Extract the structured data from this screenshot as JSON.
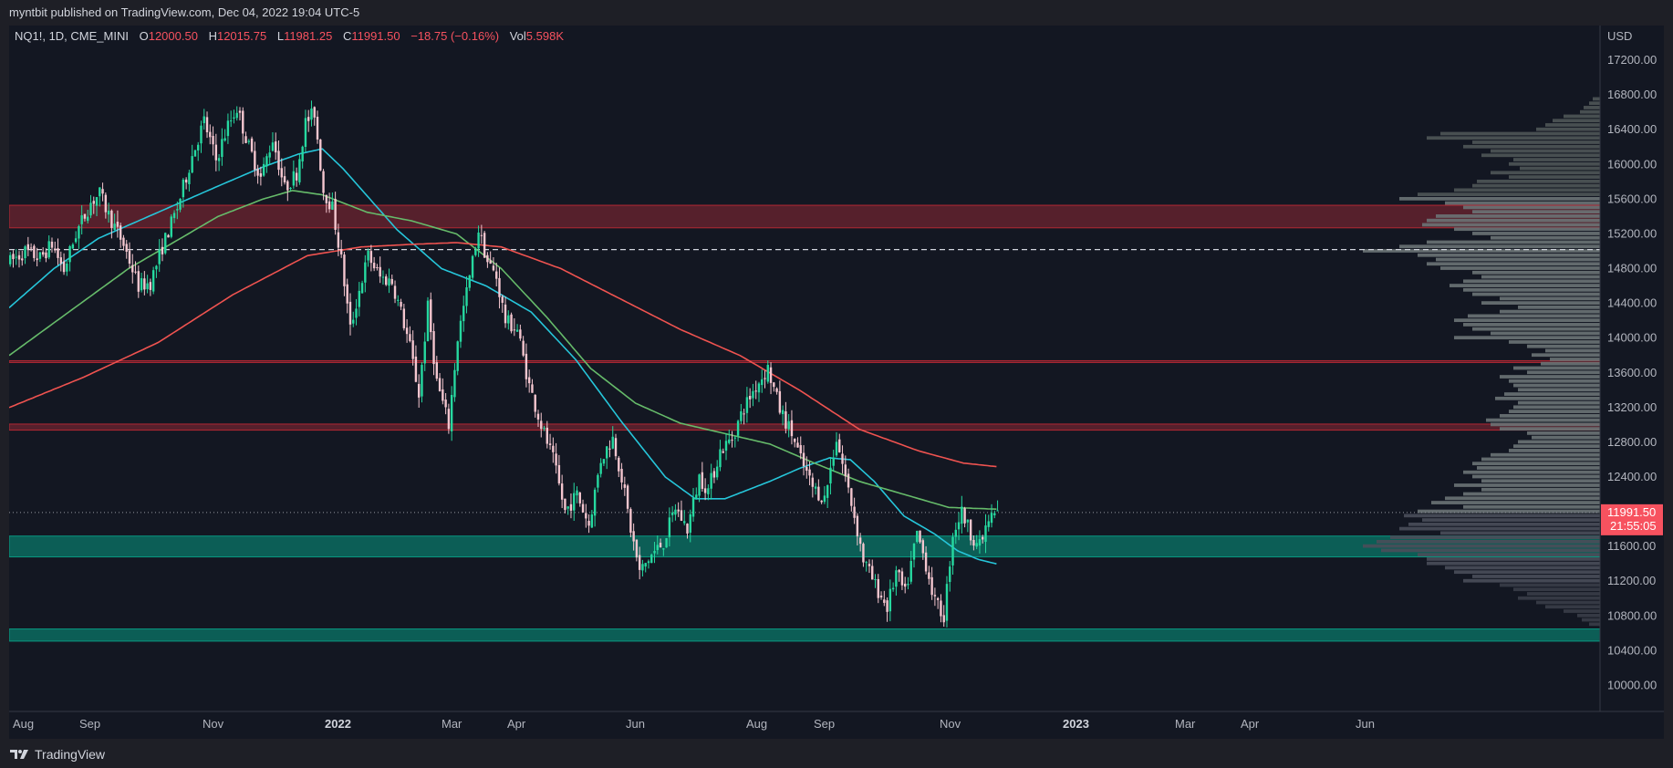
{
  "header": {
    "published": "myntbit published on TradingView.com, Dec 04, 2022 19:04 UTC-5"
  },
  "footer": {
    "brand": "TradingView"
  },
  "chart_data": {
    "type": "candlestick",
    "symbol": "NQ1!, 1D, CME_MINI",
    "ohlc_legend": {
      "O": "12000.50",
      "H": "12015.75",
      "L": "11981.25",
      "C": "11991.50",
      "change": "−18.75 (−0.16%)",
      "vol": "5.598K"
    },
    "currency": "USD",
    "last_price": "11991.50",
    "countdown": "21:55:05",
    "ylim": [
      9700,
      17600
    ],
    "y_ticks": [
      10000,
      10400,
      10800,
      11200,
      11600,
      12000,
      12400,
      12800,
      13200,
      13600,
      14000,
      14400,
      14800,
      15200,
      15600,
      16000,
      16400,
      16800,
      17200
    ],
    "x_ticks": [
      {
        "label": "Aug",
        "bold": false
      },
      {
        "label": "Sep",
        "bold": false
      },
      {
        "label": "Nov",
        "bold": false
      },
      {
        "label": "2022",
        "bold": true
      },
      {
        "label": "Mar",
        "bold": false
      },
      {
        "label": "Apr",
        "bold": false
      },
      {
        "label": "Jun",
        "bold": false
      },
      {
        "label": "Aug",
        "bold": false
      },
      {
        "label": "Sep",
        "bold": false
      },
      {
        "label": "Nov",
        "bold": false
      },
      {
        "label": "2023",
        "bold": true
      },
      {
        "label": "Mar",
        "bold": false
      },
      {
        "label": "Apr",
        "bold": false
      },
      {
        "label": "Jun",
        "bold": false
      }
    ],
    "zones": [
      {
        "kind": "resistance",
        "from": 15270,
        "to": 15530
      },
      {
        "kind": "resistance-line",
        "from": 13720,
        "to": 13740
      },
      {
        "kind": "resistance",
        "from": 12940,
        "to": 13010
      },
      {
        "kind": "support",
        "from": 11480,
        "to": 11720
      },
      {
        "kind": "support",
        "from": 10510,
        "to": 10650
      }
    ],
    "dashed_level": 15020,
    "price_anchors": [
      [
        0,
        14880
      ],
      [
        5,
        15000
      ],
      [
        10,
        14920
      ],
      [
        14,
        15080
      ],
      [
        18,
        14780
      ],
      [
        22,
        15200
      ],
      [
        27,
        15560
      ],
      [
        30,
        15660
      ],
      [
        33,
        15420
      ],
      [
        38,
        15080
      ],
      [
        43,
        14600
      ],
      [
        47,
        14640
      ],
      [
        51,
        15050
      ],
      [
        56,
        15500
      ],
      [
        61,
        16100
      ],
      [
        65,
        16500
      ],
      [
        69,
        16050
      ],
      [
        73,
        16450
      ],
      [
        76,
        16650
      ],
      [
        80,
        16200
      ],
      [
        84,
        15850
      ],
      [
        88,
        16300
      ],
      [
        92,
        15720
      ],
      [
        96,
        15900
      ],
      [
        99,
        16480
      ],
      [
        102,
        16600
      ],
      [
        105,
        15700
      ],
      [
        108,
        15500
      ],
      [
        111,
        14900
      ],
      [
        114,
        14100
      ],
      [
        117,
        14550
      ],
      [
        120,
        14950
      ],
      [
        124,
        14700
      ],
      [
        128,
        14650
      ],
      [
        131,
        14300
      ],
      [
        134,
        13900
      ],
      [
        137,
        13350
      ],
      [
        140,
        14350
      ],
      [
        143,
        13500
      ],
      [
        147,
        13000
      ],
      [
        150,
        14000
      ],
      [
        154,
        14700
      ],
      [
        157,
        15250
      ],
      [
        160,
        14880
      ],
      [
        163,
        14700
      ],
      [
        166,
        14200
      ],
      [
        170,
        14100
      ],
      [
        174,
        13450
      ],
      [
        178,
        13000
      ],
      [
        182,
        12600
      ],
      [
        186,
        12000
      ],
      [
        190,
        12200
      ],
      [
        194,
        11850
      ],
      [
        198,
        12600
      ],
      [
        202,
        12850
      ],
      [
        205,
        12400
      ],
      [
        208,
        11800
      ],
      [
        211,
        11300
      ],
      [
        215,
        11500
      ],
      [
        219,
        11650
      ],
      [
        223,
        12050
      ],
      [
        227,
        11800
      ],
      [
        231,
        12400
      ],
      [
        234,
        12250
      ],
      [
        238,
        12700
      ],
      [
        242,
        12850
      ],
      [
        246,
        13200
      ],
      [
        250,
        13450
      ],
      [
        254,
        13650
      ],
      [
        258,
        13180
      ],
      [
        262,
        12900
      ],
      [
        265,
        12600
      ],
      [
        269,
        12280
      ],
      [
        273,
        12150
      ],
      [
        277,
        12850
      ],
      [
        280,
        12400
      ],
      [
        283,
        11950
      ],
      [
        286,
        11450
      ],
      [
        290,
        11150
      ],
      [
        294,
        10900
      ],
      [
        297,
        11300
      ],
      [
        300,
        11050
      ],
      [
        304,
        11750
      ],
      [
        307,
        11400
      ],
      [
        310,
        10950
      ],
      [
        313,
        10800
      ],
      [
        316,
        11750
      ],
      [
        319,
        12000
      ],
      [
        322,
        11750
      ],
      [
        325,
        11600
      ],
      [
        328,
        11900
      ],
      [
        331,
        12000
      ]
    ],
    "bar_count": 332,
    "moving_averages": [
      {
        "color": "#26c6da",
        "anchors": [
          [
            0,
            14350
          ],
          [
            15,
            14800
          ],
          [
            30,
            15150
          ],
          [
            50,
            15450
          ],
          [
            70,
            15750
          ],
          [
            85,
            15970
          ],
          [
            97,
            16120
          ],
          [
            105,
            16180
          ],
          [
            112,
            15950
          ],
          [
            130,
            15250
          ],
          [
            145,
            14800
          ],
          [
            160,
            14600
          ],
          [
            175,
            14300
          ],
          [
            190,
            13750
          ],
          [
            205,
            13050
          ],
          [
            220,
            12400
          ],
          [
            230,
            12150
          ],
          [
            240,
            12150
          ],
          [
            255,
            12350
          ],
          [
            265,
            12500
          ],
          [
            275,
            12620
          ],
          [
            282,
            12600
          ],
          [
            290,
            12350
          ],
          [
            300,
            11950
          ],
          [
            310,
            11750
          ],
          [
            318,
            11550
          ],
          [
            325,
            11450
          ],
          [
            331,
            11400
          ]
        ]
      },
      {
        "color": "#66bb6a",
        "anchors": [
          [
            0,
            13800
          ],
          [
            20,
            14300
          ],
          [
            40,
            14800
          ],
          [
            55,
            15100
          ],
          [
            70,
            15400
          ],
          [
            85,
            15600
          ],
          [
            95,
            15700
          ],
          [
            105,
            15650
          ],
          [
            120,
            15450
          ],
          [
            135,
            15350
          ],
          [
            150,
            15200
          ],
          [
            165,
            14800
          ],
          [
            180,
            14250
          ],
          [
            195,
            13650
          ],
          [
            210,
            13250
          ],
          [
            225,
            13020
          ],
          [
            240,
            12900
          ],
          [
            255,
            12780
          ],
          [
            270,
            12560
          ],
          [
            285,
            12350
          ],
          [
            300,
            12200
          ],
          [
            315,
            12050
          ],
          [
            331,
            12030
          ]
        ]
      },
      {
        "color": "#ef5350",
        "anchors": [
          [
            0,
            13200
          ],
          [
            25,
            13550
          ],
          [
            50,
            13950
          ],
          [
            75,
            14500
          ],
          [
            100,
            14950
          ],
          [
            118,
            15050
          ],
          [
            135,
            15080
          ],
          [
            150,
            15100
          ],
          [
            165,
            15050
          ],
          [
            185,
            14800
          ],
          [
            205,
            14450
          ],
          [
            225,
            14100
          ],
          [
            245,
            13800
          ],
          [
            265,
            13400
          ],
          [
            285,
            12950
          ],
          [
            305,
            12700
          ],
          [
            320,
            12560
          ],
          [
            331,
            12520
          ]
        ]
      }
    ],
    "volume_profile": [
      [
        16750,
        8
      ],
      [
        16700,
        12
      ],
      [
        16650,
        18
      ],
      [
        16600,
        22
      ],
      [
        16550,
        40
      ],
      [
        16500,
        52
      ],
      [
        16450,
        60
      ],
      [
        16400,
        70
      ],
      [
        16350,
        175
      ],
      [
        16300,
        190
      ],
      [
        16250,
        140
      ],
      [
        16200,
        150
      ],
      [
        16150,
        120
      ],
      [
        16100,
        130
      ],
      [
        16050,
        95
      ],
      [
        16000,
        100
      ],
      [
        15950,
        88
      ],
      [
        15900,
        120
      ],
      [
        15850,
        100
      ],
      [
        15800,
        135
      ],
      [
        15750,
        140
      ],
      [
        15700,
        160
      ],
      [
        15650,
        200
      ],
      [
        15600,
        220
      ],
      [
        15550,
        170
      ],
      [
        15500,
        150
      ],
      [
        15450,
        140
      ],
      [
        15400,
        180
      ],
      [
        15350,
        190
      ],
      [
        15300,
        195
      ],
      [
        15250,
        160
      ],
      [
        15200,
        140
      ],
      [
        15150,
        120
      ],
      [
        15100,
        190
      ],
      [
        15050,
        220
      ],
      [
        15000,
        260
      ],
      [
        14950,
        200
      ],
      [
        14900,
        180
      ],
      [
        14850,
        190
      ],
      [
        14800,
        175
      ],
      [
        14750,
        140
      ],
      [
        14700,
        130
      ],
      [
        14650,
        150
      ],
      [
        14600,
        165
      ],
      [
        14550,
        150
      ],
      [
        14500,
        140
      ],
      [
        14450,
        110
      ],
      [
        14400,
        130
      ],
      [
        14350,
        90
      ],
      [
        14300,
        110
      ],
      [
        14250,
        145
      ],
      [
        14200,
        160
      ],
      [
        14150,
        150
      ],
      [
        14100,
        140
      ],
      [
        14050,
        120
      ],
      [
        14000,
        160
      ],
      [
        13950,
        100
      ],
      [
        13900,
        80
      ],
      [
        13850,
        60
      ],
      [
        13800,
        75
      ],
      [
        13750,
        55
      ],
      [
        13700,
        65
      ],
      [
        13650,
        95
      ],
      [
        13600,
        80
      ],
      [
        13550,
        110
      ],
      [
        13500,
        100
      ],
      [
        13450,
        95
      ],
      [
        13400,
        90
      ],
      [
        13350,
        105
      ],
      [
        13300,
        115
      ],
      [
        13250,
        90
      ],
      [
        13200,
        95
      ],
      [
        13150,
        100
      ],
      [
        13100,
        110
      ],
      [
        13050,
        125
      ],
      [
        13000,
        120
      ],
      [
        12950,
        110
      ],
      [
        12900,
        80
      ],
      [
        12850,
        75
      ],
      [
        12800,
        90
      ],
      [
        12750,
        95
      ],
      [
        12700,
        100
      ],
      [
        12650,
        120
      ],
      [
        12600,
        130
      ],
      [
        12550,
        140
      ],
      [
        12500,
        135
      ],
      [
        12450,
        150
      ],
      [
        12400,
        140
      ],
      [
        12350,
        130
      ],
      [
        12300,
        160
      ],
      [
        12250,
        130
      ],
      [
        12200,
        150
      ],
      [
        12150,
        170
      ],
      [
        12100,
        185
      ],
      [
        12050,
        150
      ],
      [
        12000,
        200
      ],
      [
        11950,
        215
      ],
      [
        11900,
        195
      ],
      [
        11850,
        210
      ],
      [
        11800,
        220
      ],
      [
        11750,
        175
      ],
      [
        11700,
        230
      ],
      [
        11650,
        245
      ],
      [
        11600,
        260
      ],
      [
        11550,
        240
      ],
      [
        11500,
        200
      ],
      [
        11450,
        190
      ],
      [
        11400,
        190
      ],
      [
        11350,
        170
      ],
      [
        11300,
        160
      ],
      [
        11250,
        140
      ],
      [
        11200,
        150
      ],
      [
        11150,
        110
      ],
      [
        11100,
        95
      ],
      [
        11050,
        80
      ],
      [
        11000,
        90
      ],
      [
        10950,
        70
      ],
      [
        10900,
        60
      ],
      [
        10850,
        40
      ],
      [
        10800,
        25
      ],
      [
        10750,
        20
      ],
      [
        10700,
        12
      ]
    ]
  }
}
